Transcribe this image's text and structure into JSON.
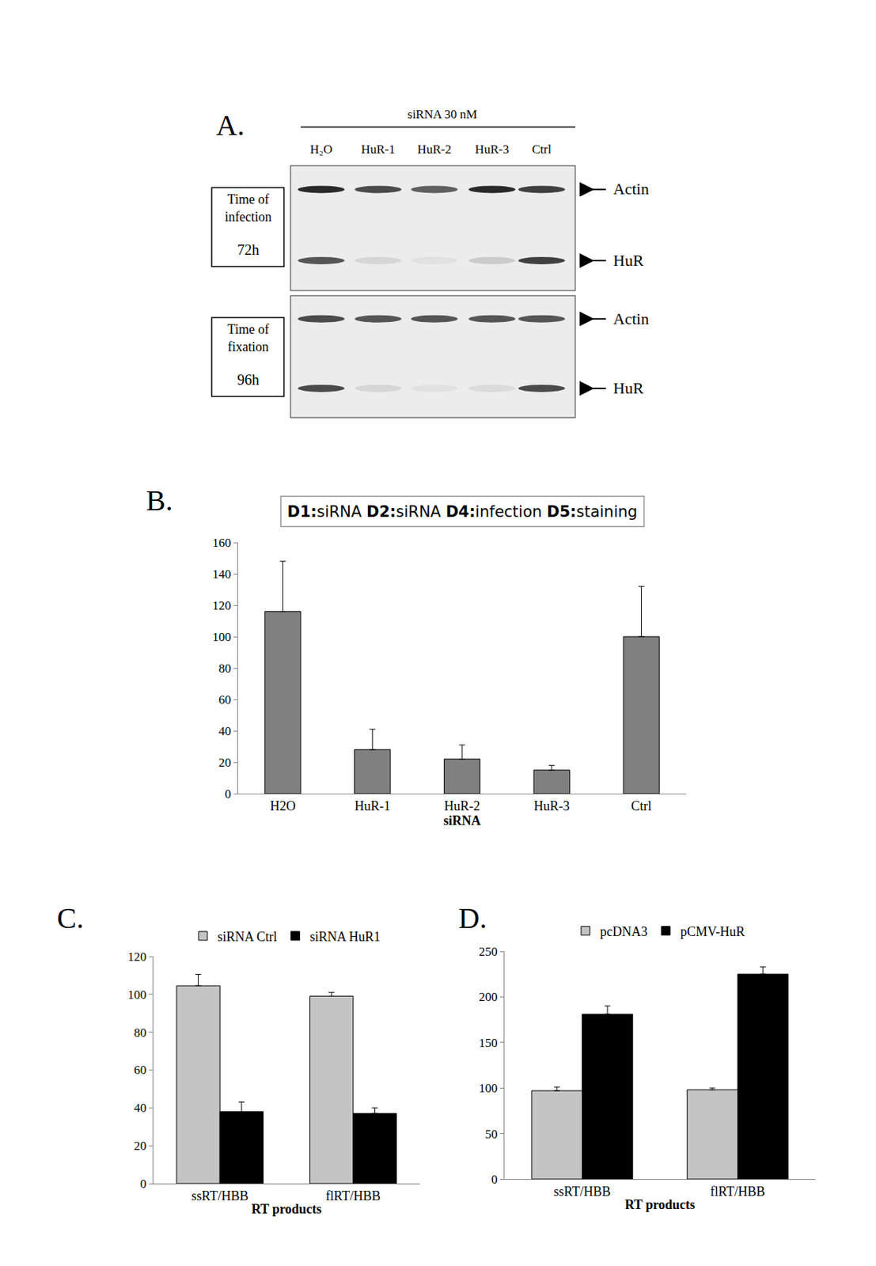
{
  "blot": {
    "panel": "A.",
    "header": "siRNA 30 nM",
    "lanes": [
      "H₂O",
      "HuR-1",
      "HuR-2",
      "HuR-3",
      "Ctrl"
    ],
    "blocks": [
      {
        "label": [
          "Time of",
          "infection"
        ],
        "time": "72h",
        "bands": [
          {
            "name": "Actin",
            "intensity": [
              0.9,
              0.75,
              0.65,
              0.9,
              0.8
            ]
          },
          {
            "name": "HuR",
            "intensity": [
              0.7,
              0.1,
              0.05,
              0.15,
              0.8
            ]
          }
        ]
      },
      {
        "label": [
          "Time of",
          "fixation"
        ],
        "time": "96h",
        "bands": [
          {
            "name": "Actin",
            "intensity": [
              0.75,
              0.7,
              0.7,
              0.7,
              0.7
            ]
          },
          {
            "name": "HuR",
            "intensity": [
              0.75,
              0.1,
              0.05,
              0.08,
              0.75
            ]
          }
        ]
      }
    ]
  },
  "chart_data": [
    {
      "panel": "B.",
      "type": "bar",
      "title": "D1:siRNA D2:siRNA D4:infection D5:staining",
      "x_label": "siRNA",
      "categories": [
        "H2O",
        "HuR-1",
        "HuR-2",
        "HuR-3",
        "Ctrl"
      ],
      "series": [
        {
          "color": "#808080",
          "values": [
            116,
            28,
            22,
            15,
            100
          ],
          "errors": [
            32,
            13,
            9,
            3,
            32
          ]
        }
      ],
      "ylim": [
        0,
        160
      ],
      "yticks": [
        0,
        20,
        40,
        60,
        80,
        100,
        120,
        140,
        160
      ],
      "grid": false
    },
    {
      "panel": "C.",
      "type": "bar",
      "x_label": "RT products",
      "categories": [
        "ssRT/HBB",
        "flRT/HBB"
      ],
      "series": [
        {
          "name": "siRNA Ctrl",
          "color": "#c4c4c4",
          "values": [
            104.5,
            99
          ],
          "errors": [
            6,
            2
          ]
        },
        {
          "name": "siRNA HuR1",
          "color": "#000000",
          "values": [
            38,
            37
          ],
          "errors": [
            5,
            3
          ]
        }
      ],
      "ylim": [
        0,
        120
      ],
      "yticks": [
        0,
        20,
        40,
        60,
        80,
        100,
        120
      ],
      "legend": "top",
      "grid": false
    },
    {
      "panel": "D.",
      "type": "bar",
      "x_label": "RT products",
      "categories": [
        "ssRT/HBB",
        "flRT/HBB"
      ],
      "series": [
        {
          "name": "pcDNA3",
          "color": "#c4c4c4",
          "values": [
            97,
            98
          ],
          "errors": [
            4,
            2
          ]
        },
        {
          "name": "pCMV-HuR",
          "color": "#000000",
          "values": [
            181,
            225
          ],
          "errors": [
            9,
            8
          ]
        }
      ],
      "ylim": [
        0,
        250
      ],
      "yticks": [
        0,
        50,
        100,
        150,
        200,
        250
      ],
      "legend": "top",
      "grid": false
    }
  ]
}
